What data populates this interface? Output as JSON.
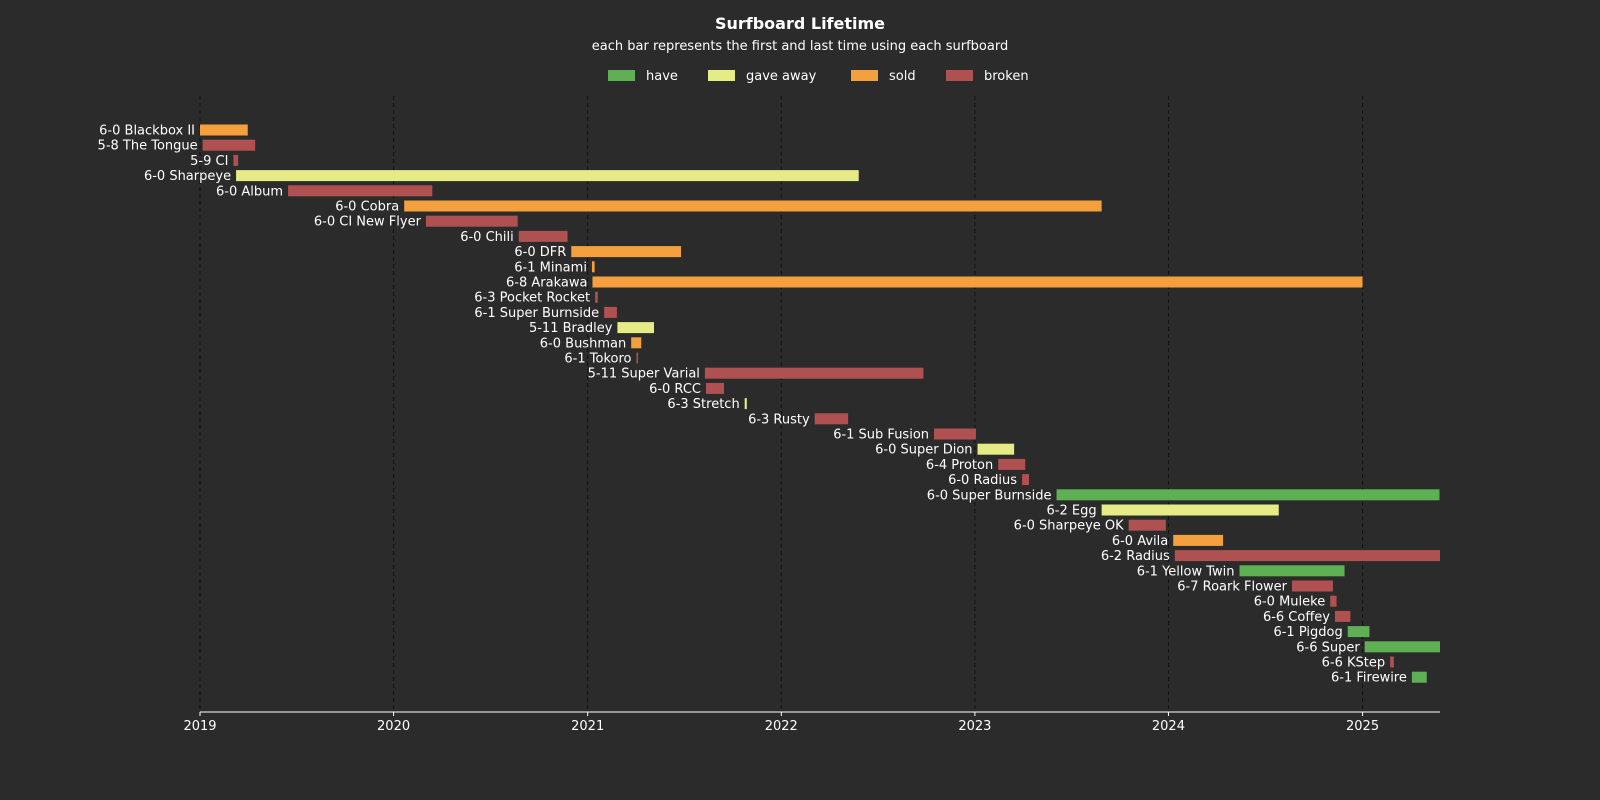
{
  "chart_data": {
    "type": "gantt",
    "title": "Surfboard Lifetime",
    "subtitle": "each bar represents the first and last time using each surfboard",
    "xlabel": "",
    "ylabel": "",
    "x_axis": {
      "type": "date",
      "range": [
        "2019-01-01",
        "2025-05-27"
      ],
      "ticks": [
        "2019",
        "2020",
        "2021",
        "2022",
        "2023",
        "2024",
        "2025"
      ],
      "grid": true
    },
    "legend": {
      "position": "top-center",
      "entries": [
        {
          "label": "have",
          "color": "#5fb054"
        },
        {
          "label": "gave away",
          "color": "#e6ec85"
        },
        {
          "label": "sold",
          "color": "#f4a03e"
        },
        {
          "label": "broken",
          "color": "#b05151"
        }
      ]
    },
    "colors": {
      "background": "#2b2b2b",
      "text": "#ffffff",
      "grid": "#111111",
      "axis": "#ffffff"
    },
    "bars": [
      {
        "label": "6-0 Blackbox II",
        "status": "sold",
        "start": "2019-01-01",
        "end": "2019-04-01"
      },
      {
        "label": "5-8 The Tongue",
        "status": "broken",
        "start": "2019-01-06",
        "end": "2019-04-15"
      },
      {
        "label": "5-9 CI",
        "status": "broken",
        "start": "2019-03-05",
        "end": "2019-03-14"
      },
      {
        "label": "6-0 Sharpeye",
        "status": "gave away",
        "start": "2019-03-10",
        "end": "2022-05-27"
      },
      {
        "label": "6-0 Album",
        "status": "broken",
        "start": "2019-06-16",
        "end": "2020-03-14"
      },
      {
        "label": "6-0 Cobra",
        "status": "sold",
        "start": "2020-01-21",
        "end": "2023-08-28"
      },
      {
        "label": "6-0 CI New Flyer",
        "status": "broken",
        "start": "2020-03-02",
        "end": "2020-08-22"
      },
      {
        "label": "6-0 Chili",
        "status": "broken",
        "start": "2020-08-24",
        "end": "2020-11-24"
      },
      {
        "label": "6-0 DFR",
        "status": "sold",
        "start": "2020-12-01",
        "end": "2021-06-26"
      },
      {
        "label": "6-1 Minami",
        "status": "sold",
        "start": "2021-01-09",
        "end": "2021-01-14"
      },
      {
        "label": "6-8 Arakawa",
        "status": "sold",
        "start": "2021-01-10",
        "end": "2025-01-01"
      },
      {
        "label": "6-3 Pocket Rocket",
        "status": "broken",
        "start": "2021-01-15",
        "end": "2021-01-20"
      },
      {
        "label": "6-1 Super Burnside",
        "status": "broken",
        "start": "2021-02-01",
        "end": "2021-02-25"
      },
      {
        "label": "5-11 Bradley",
        "status": "gave away",
        "start": "2021-02-26",
        "end": "2021-05-06"
      },
      {
        "label": "6-0 Bushman",
        "status": "sold",
        "start": "2021-03-24",
        "end": "2021-04-12"
      },
      {
        "label": "6-1 Tokoro",
        "status": "broken",
        "start": "2021-04-03",
        "end": "2021-04-06"
      },
      {
        "label": "5-11 Super Varial",
        "status": "broken",
        "start": "2021-08-10",
        "end": "2022-09-26"
      },
      {
        "label": "6-0 RCC",
        "status": "broken",
        "start": "2021-08-12",
        "end": "2021-09-15"
      },
      {
        "label": "6-3 Stretch",
        "status": "gave away",
        "start": "2021-10-24",
        "end": "2021-10-28"
      },
      {
        "label": "6-3 Rusty",
        "status": "broken",
        "start": "2022-03-05",
        "end": "2022-05-07"
      },
      {
        "label": "6-1 Sub Fusion",
        "status": "broken",
        "start": "2022-10-16",
        "end": "2023-01-03"
      },
      {
        "label": "6-0 Super Dion",
        "status": "gave away",
        "start": "2023-01-06",
        "end": "2023-03-16"
      },
      {
        "label": "6-4 Proton",
        "status": "broken",
        "start": "2023-02-14",
        "end": "2023-04-06"
      },
      {
        "label": "6-0 Radius",
        "status": "broken",
        "start": "2023-03-31",
        "end": "2023-04-13"
      },
      {
        "label": "6-0 Super Burnside",
        "status": "have",
        "start": "2023-06-04",
        "end": "2025-05-26"
      },
      {
        "label": "6-2 Egg",
        "status": "gave away",
        "start": "2023-08-28",
        "end": "2024-07-27"
      },
      {
        "label": "6-0 Sharpeye OK",
        "status": "broken",
        "start": "2023-10-18",
        "end": "2023-12-27"
      },
      {
        "label": "6-0 Avila",
        "status": "sold",
        "start": "2024-01-10",
        "end": "2024-04-13"
      },
      {
        "label": "6-2 Radius",
        "status": "broken",
        "start": "2024-01-13",
        "end": "2025-05-27"
      },
      {
        "label": "6-1 Yellow Twin",
        "status": "have",
        "start": "2024-05-14",
        "end": "2024-11-28"
      },
      {
        "label": "6-7 Roark Flower",
        "status": "broken",
        "start": "2024-08-21",
        "end": "2024-11-06"
      },
      {
        "label": "6-0 Muleke",
        "status": "broken",
        "start": "2024-11-01",
        "end": "2024-11-13"
      },
      {
        "label": "6-6 Coffey",
        "status": "broken",
        "start": "2024-11-10",
        "end": "2024-12-09"
      },
      {
        "label": "6-1 Pigdog",
        "status": "have",
        "start": "2024-12-04",
        "end": "2025-01-14"
      },
      {
        "label": "6-6 Super",
        "status": "have",
        "start": "2025-01-05",
        "end": "2025-05-27"
      },
      {
        "label": "6-6 KStep",
        "status": "broken",
        "start": "2025-02-22",
        "end": "2025-03-01"
      },
      {
        "label": "6-1 Firewire",
        "status": "have",
        "start": "2025-04-04",
        "end": "2025-05-02"
      }
    ]
  }
}
